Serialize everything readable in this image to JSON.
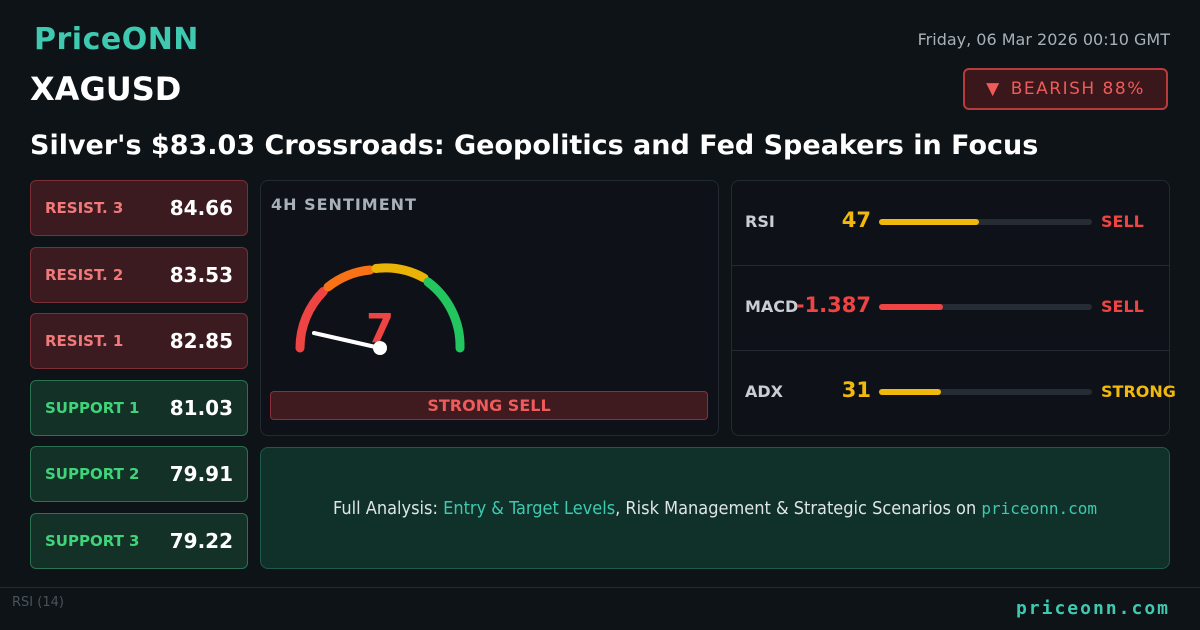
{
  "header": {
    "brand": "PriceONN",
    "date": "Friday, 06 Mar 2026 00:10 GMT",
    "symbol": "XAGUSD",
    "badge": "BEARISH 88%",
    "headline": "Silver's $83.03 Crossroads: Geopolitics and Fed Speakers in Focus"
  },
  "resistance": [
    {
      "label": "RESIST. 3",
      "value": 84.66
    },
    {
      "label": "RESIST. 2",
      "value": 83.53
    },
    {
      "label": "RESIST. 1",
      "value": 82.85
    }
  ],
  "support": [
    {
      "label": "SUPPORT 1",
      "value": 81.03
    },
    {
      "label": "SUPPORT 2",
      "value": 79.91
    },
    {
      "label": "SUPPORT 3",
      "value": 79.22
    }
  ],
  "sentiment": {
    "title": "4H SENTIMENT",
    "score": 7,
    "verdict": "STRONG SELL"
  },
  "indicators": [
    {
      "name": "RSI",
      "value": 47,
      "signal": "SELL",
      "color": "#f0b90b",
      "signal_color": "#ef4444"
    },
    {
      "name": "MACD",
      "value": -1.387,
      "signal": "SELL",
      "color": "#ef4444",
      "signal_color": "#ef4444"
    },
    {
      "name": "ADX",
      "value": 31,
      "signal": "STRONG",
      "color": "#f0b90b",
      "signal_color": "#f0b90b"
    }
  ],
  "cta": {
    "prefix": "Full Analysis:",
    "highlight": "Entry & Target Levels",
    "middle": ", Risk Management & Strategic Scenarios on",
    "site": "priceonn.com"
  },
  "footer": {
    "chart_label": "RSI (14)",
    "site": "priceonn.com"
  }
}
